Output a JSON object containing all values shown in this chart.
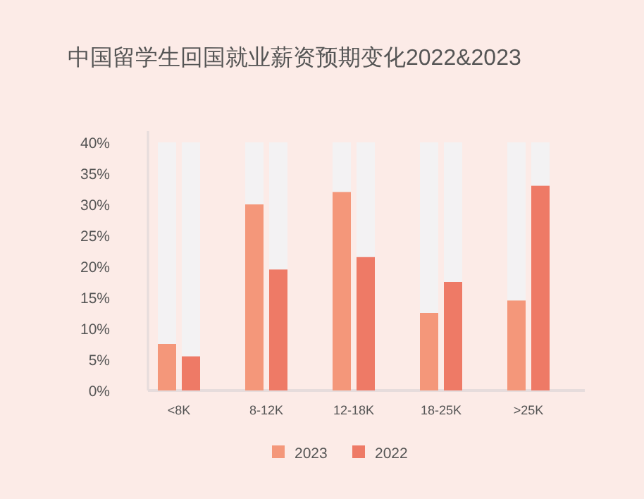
{
  "chart_data": {
    "type": "bar",
    "title": "中国留学生回国就业薪资预期变化2022&2023",
    "categories": [
      "<8K",
      "8-12K",
      "12-18K",
      "18-25K",
      ">25K"
    ],
    "series": [
      {
        "name": "2023",
        "color": "#f4977a",
        "values": [
          7.5,
          30,
          32,
          12.5,
          14.5
        ]
      },
      {
        "name": "2022",
        "color": "#ee7a66",
        "values": [
          5.5,
          19.5,
          21.5,
          17.5,
          33
        ]
      }
    ],
    "ylim": [
      0,
      40
    ],
    "yticks": [
      {
        "value": 0,
        "label": "0%"
      },
      {
        "value": 5,
        "label": "5%"
      },
      {
        "value": 10,
        "label": "10%"
      },
      {
        "value": 15,
        "label": "15%"
      },
      {
        "value": 20,
        "label": "20%"
      },
      {
        "value": 25,
        "label": "25%"
      },
      {
        "value": 30,
        "label": "30%"
      },
      {
        "value": 35,
        "label": "35%"
      },
      {
        "value": 40,
        "label": "40%"
      }
    ],
    "grid": false,
    "legend": "bottom"
  }
}
